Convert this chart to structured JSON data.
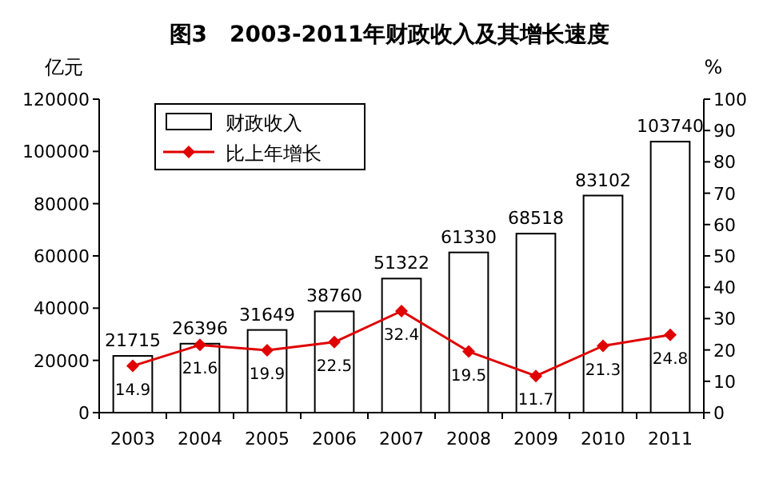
{
  "chart_data": {
    "type": "bar",
    "title": "图3　2003-2011年财政收入及其增长速度",
    "ylabel": "亿元",
    "y2label": "%",
    "categories": [
      "2003",
      "2004",
      "2005",
      "2006",
      "2007",
      "2008",
      "2009",
      "2010",
      "2011"
    ],
    "series": [
      {
        "name": "财政收入",
        "color": "#ffffff",
        "values": [
          21715,
          26396,
          31649,
          38760,
          51322,
          61330,
          68518,
          83102,
          103740
        ]
      },
      {
        "name": "比上年增长",
        "type": "line",
        "axis": "y2",
        "color": "#e00000",
        "values": [
          14.9,
          21.6,
          19.9,
          22.5,
          32.4,
          19.5,
          11.7,
          21.3,
          24.8
        ]
      }
    ],
    "ylim": [
      0,
      120000
    ],
    "yticks": [
      0,
      20000,
      40000,
      60000,
      80000,
      100000,
      120000
    ],
    "y2lim": [
      0,
      100
    ],
    "y2ticks": [
      0,
      10,
      20,
      30,
      40,
      50,
      60,
      70,
      80,
      90,
      100
    ],
    "marker": "diamond",
    "line_style": "solid",
    "data_labels": true,
    "legend": "top left",
    "grid": false
  }
}
